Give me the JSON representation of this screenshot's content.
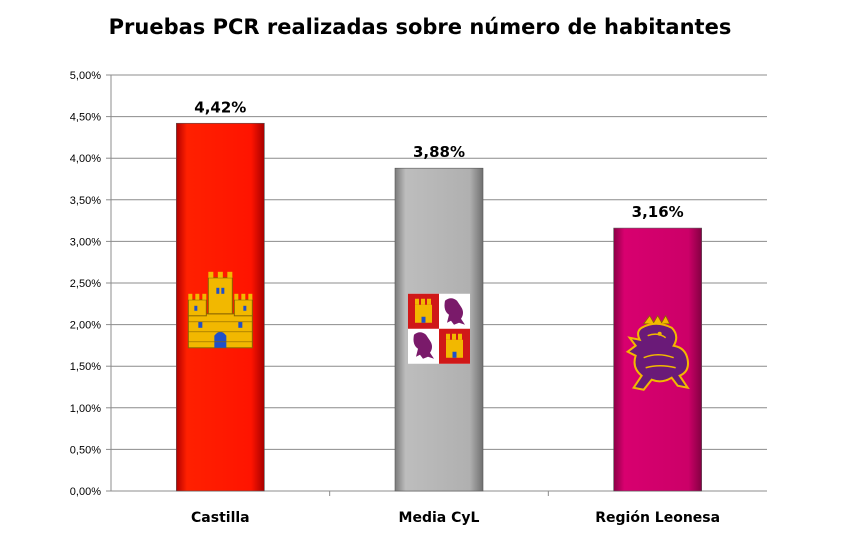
{
  "chart_data": {
    "type": "bar",
    "title": "Pruebas PCR realizadas sobre número de habitantes",
    "xlabel": "",
    "ylabel": "",
    "ylim": [
      0,
      5
    ],
    "yticks": [
      "0,00%",
      "0,50%",
      "1,00%",
      "1,50%",
      "2,00%",
      "2,50%",
      "3,00%",
      "3,50%",
      "4,00%",
      "4,50%",
      "5,00%"
    ],
    "categories": [
      "Castilla",
      "Media CyL",
      "Región Leonesa"
    ],
    "values": [
      4.42,
      3.88,
      3.16
    ],
    "data_labels": [
      "4,42%",
      "3,88%",
      "3,16%"
    ],
    "colors": [
      "#ff1a00",
      "#b4b4b4",
      "#d4006e"
    ],
    "grid": true,
    "legend": "none",
    "bar_icons": [
      "castle-emblem-icon",
      "quartered-castle-lion-arms-icon",
      "rampant-lion-icon"
    ]
  }
}
